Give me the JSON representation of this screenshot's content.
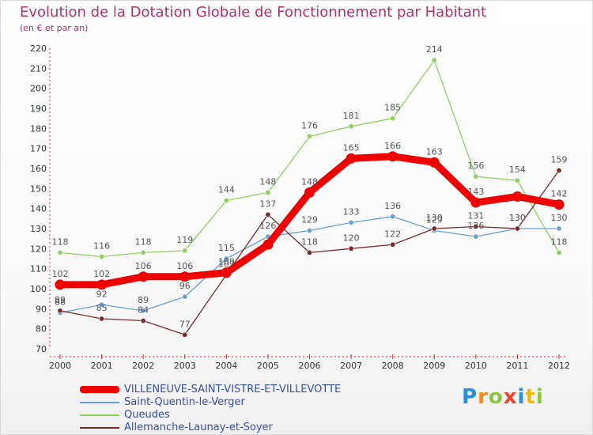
{
  "chart_data": {
    "type": "line",
    "title": "Evolution de la Dotation Globale de Fonctionnement par Habitant",
    "subtitle": "(en € et par an)",
    "xlabel": "",
    "ylabel": "",
    "ylim": [
      70,
      220
    ],
    "yticks": [
      70,
      80,
      90,
      100,
      110,
      120,
      130,
      140,
      150,
      160,
      170,
      180,
      190,
      200,
      210,
      220
    ],
    "categories": [
      "2000",
      "2001",
      "2002",
      "2003",
      "2004",
      "2005",
      "2006",
      "2007",
      "2008",
      "2009",
      "2010",
      "2011",
      "2012"
    ],
    "series": [
      {
        "name": "VILLENEUVE-SAINT-VISTRE-ET-VILLEVOTTE",
        "color": "#ee0000",
        "values": [
          102,
          102,
          106,
          106,
          108,
          122,
          148,
          165,
          166,
          163,
          143,
          146,
          142
        ],
        "labels": [
          "102",
          "102",
          "106",
          "106",
          "108",
          "",
          "148",
          "165",
          "166",
          "163",
          "143",
          "",
          "142"
        ]
      },
      {
        "name": "Saint-Quentin-le-Verger",
        "color": "#6a9fd0",
        "values": [
          88,
          92,
          89,
          96,
          115,
          126,
          129,
          133,
          136,
          129,
          126,
          130,
          130
        ],
        "labels": [
          "88",
          "92",
          "89",
          "96",
          "115",
          "126",
          "129",
          "133",
          "136",
          "129",
          "126",
          "130",
          "130"
        ]
      },
      {
        "name": "Queudes",
        "color": "#90d060",
        "values": [
          118,
          116,
          118,
          119,
          144,
          148,
          176,
          181,
          185,
          214,
          156,
          154,
          118
        ],
        "labels": [
          "118",
          "116",
          "118",
          "119",
          "144",
          "148",
          "176",
          "181",
          "185",
          "214",
          "156",
          "154",
          "118"
        ]
      },
      {
        "name": "Allemanche-Launay-et-Soyer",
        "color": "#7a2a2a",
        "values": [
          89,
          85,
          84,
          77,
          107,
          137,
          118,
          120,
          122,
          130,
          131,
          130,
          159
        ],
        "labels": [
          "89",
          "85",
          "84",
          "77",
          "107",
          "137",
          "118",
          "120",
          "122",
          "130",
          "131",
          "130",
          "159"
        ]
      }
    ],
    "legend_position": "bottom-left"
  },
  "brand": {
    "logo_text": "Proxiti"
  }
}
